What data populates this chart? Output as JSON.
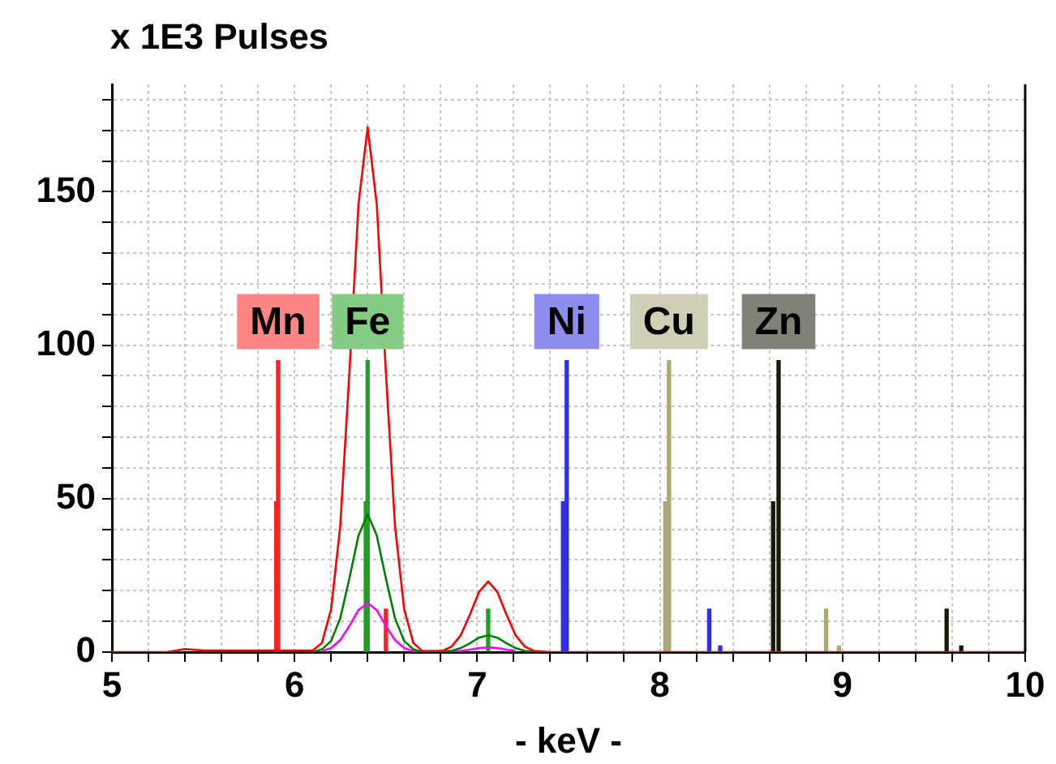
{
  "chart_data": {
    "type": "line",
    "ylabel": "x 1E3 Pulses",
    "xlabel": "- keV -",
    "xlim": [
      5,
      10
    ],
    "ylim": [
      0,
      185
    ],
    "xticks": [
      5,
      {
        "value": 5.2,
        "label": null
      },
      {
        "value": 5.4,
        "label": null
      },
      {
        "value": 5.6,
        "label": null
      },
      {
        "value": 5.8,
        "label": null
      },
      6,
      {
        "value": 6.2,
        "label": null
      },
      {
        "value": 6.4,
        "label": null
      },
      {
        "value": 6.6,
        "label": null
      },
      {
        "value": 6.8,
        "label": null
      },
      7,
      {
        "value": 7.2,
        "label": null
      },
      {
        "value": 7.4,
        "label": null
      },
      {
        "value": 7.6,
        "label": null
      },
      {
        "value": 7.8,
        "label": null
      },
      8,
      {
        "value": 8.2,
        "label": null
      },
      {
        "value": 8.4,
        "label": null
      },
      {
        "value": 8.6,
        "label": null
      },
      {
        "value": 8.8,
        "label": null
      },
      9,
      {
        "value": 9.2,
        "label": null
      },
      {
        "value": 9.4,
        "label": null
      },
      {
        "value": 9.6,
        "label": null
      },
      {
        "value": 9.8,
        "label": null
      },
      10
    ],
    "yticks": [
      0,
      {
        "value": 10,
        "label": null
      },
      {
        "value": 20,
        "label": null
      },
      {
        "value": 30,
        "label": null
      },
      {
        "value": 40,
        "label": null
      },
      50,
      {
        "value": 60,
        "label": null
      },
      {
        "value": 70,
        "label": null
      },
      {
        "value": 80,
        "label": null
      },
      {
        "value": 90,
        "label": null
      },
      100,
      {
        "value": 110,
        "label": null
      },
      {
        "value": 120,
        "label": null
      },
      {
        "value": 130,
        "label": null
      },
      {
        "value": 140,
        "label": null
      },
      150,
      {
        "value": 160,
        "label": null
      },
      {
        "value": 170,
        "label": null
      },
      {
        "value": 180,
        "label": null
      }
    ],
    "grid": true,
    "series": [
      {
        "color": "#ff0000",
        "x": [
          5,
          5.3,
          5.4,
          5.5,
          6.1,
          6.15,
          6.2,
          6.25,
          6.3,
          6.35,
          6.4,
          6.45,
          6.5,
          6.55,
          6.6,
          6.65,
          6.7,
          6.81,
          6.86,
          6.91,
          6.96,
          7.01,
          7.06,
          7.11,
          7.16,
          7.21,
          7.26,
          7.31,
          7.4,
          10
        ],
        "values": [
          0,
          0,
          1,
          0.5,
          0.5,
          3,
          14,
          41,
          91,
          146,
          171,
          146,
          91,
          41,
          14,
          3,
          0.3,
          0.4,
          1.8,
          5.5,
          12.2,
          19.6,
          23,
          19.6,
          12.2,
          5.5,
          1.8,
          0.4,
          0,
          0
        ]
      },
      {
        "color": "#008000",
        "x": [
          6.1,
          6.15,
          6.2,
          6.25,
          6.3,
          6.35,
          6.4,
          6.45,
          6.5,
          6.55,
          6.6,
          6.65,
          6.7,
          6.86,
          6.91,
          6.96,
          7.01,
          7.06,
          7.11,
          7.16,
          7.21,
          7.26,
          7.35
        ],
        "values": [
          0,
          0.9,
          3.6,
          11,
          24,
          38,
          45,
          38,
          24,
          11,
          3.6,
          0.9,
          0,
          0.4,
          1.3,
          2.9,
          4.7,
          5.5,
          4.7,
          2.9,
          1.3,
          0.4,
          0
        ]
      },
      {
        "color": "#ff00ff",
        "x": [
          6.15,
          6.2,
          6.25,
          6.3,
          6.35,
          6.4,
          6.45,
          6.5,
          6.55,
          6.6,
          6.65,
          6.91,
          6.96,
          7.01,
          7.06,
          7.11,
          7.16,
          7.21
        ],
        "values": [
          0.3,
          1.3,
          3.9,
          8.5,
          13.7,
          16,
          13.7,
          8.5,
          3.9,
          1.3,
          0.3,
          0.4,
          0.8,
          1.3,
          1.5,
          1.3,
          0.8,
          0.4
        ]
      },
      {
        "type": "bar",
        "name": "Mn",
        "color": "#ff2020",
        "x": [
          5.9,
          5.91,
          6.5
        ],
        "values": [
          49,
          95,
          14
        ]
      },
      {
        "type": "bar",
        "name": "Fe",
        "color": "#20a020",
        "x": [
          6.39,
          6.4,
          7.06
        ],
        "values": [
          49,
          95,
          14
        ]
      },
      {
        "type": "bar",
        "name": "Ni",
        "color": "#3030e0",
        "x": [
          7.47,
          7.49,
          8.27,
          8.33
        ],
        "values": [
          49,
          95,
          14,
          2
        ]
      },
      {
        "type": "bar",
        "name": "Cu",
        "color": "#a8a878",
        "x": [
          8.03,
          8.05,
          8.91,
          8.98
        ],
        "values": [
          49,
          95,
          14,
          2
        ]
      },
      {
        "type": "bar",
        "name": "Zn",
        "color": "#1a1a0a",
        "x": [
          8.62,
          8.65,
          9.57,
          9.65
        ],
        "values": [
          49,
          95,
          14,
          2
        ]
      }
    ]
  }
}
